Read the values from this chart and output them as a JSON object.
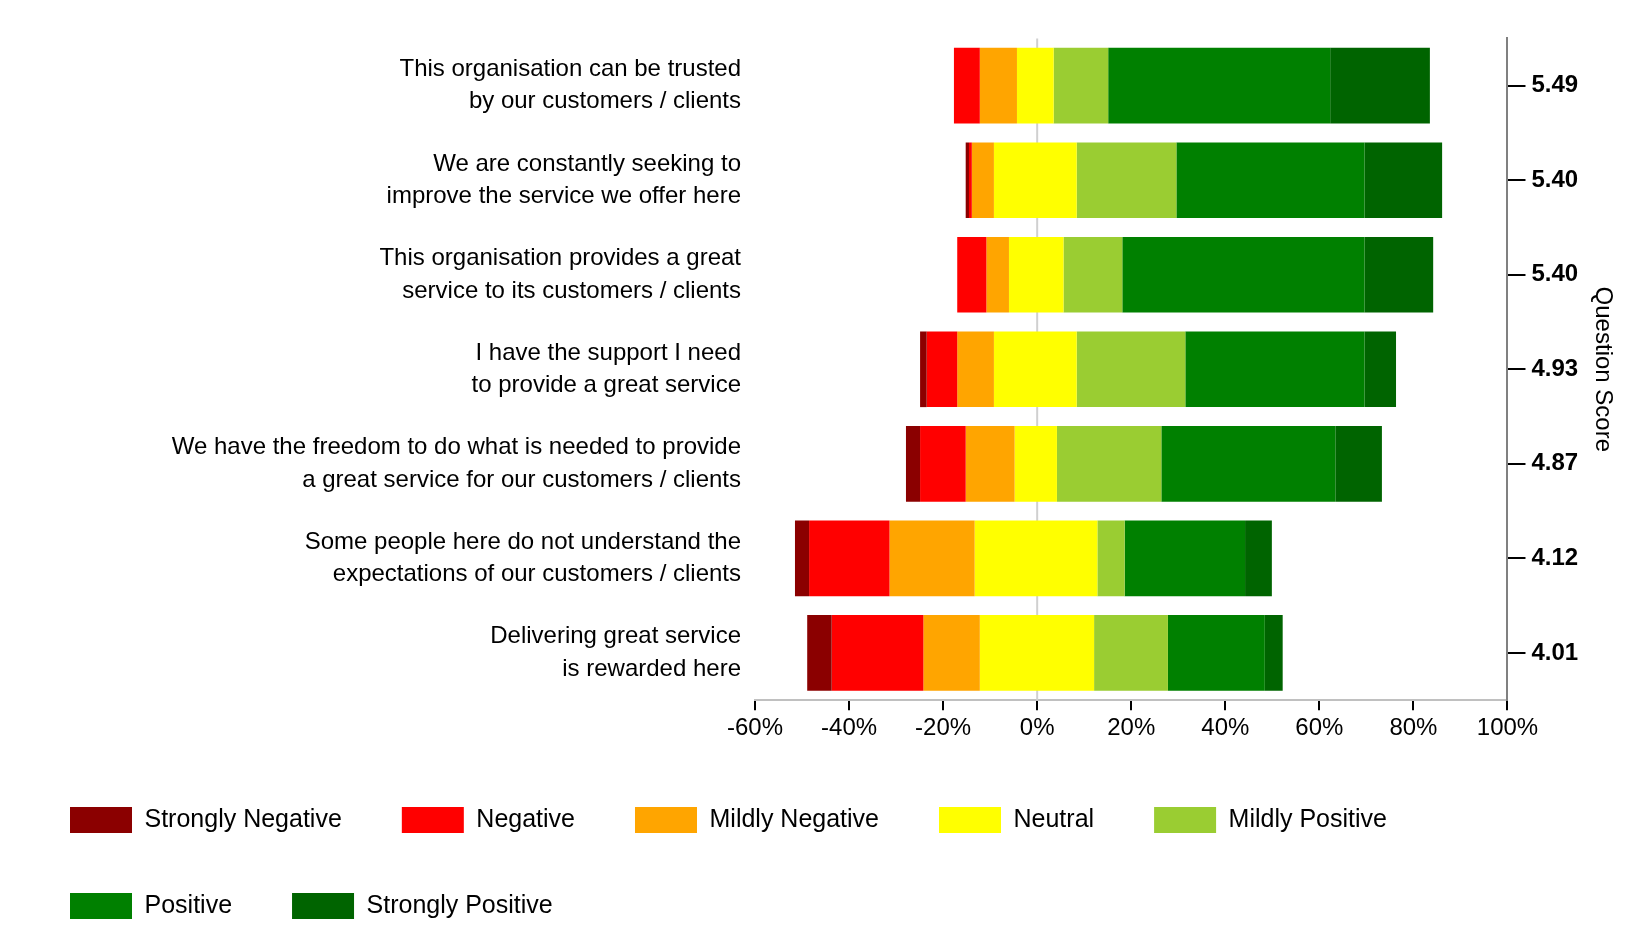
{
  "chart_data": {
    "type": "bar",
    "orientation": "horizontal",
    "categories": [
      "This organisation can be trusted\nby our customers / clients",
      "We are constantly seeking to\nimprove the service we offer here",
      "This organisation provides a great\nservice to its customers / clients",
      "I have the support I need\nto provide a great service",
      "We have the freedom to do what is needed to provide\na great service for our customers / clients",
      "Some people here do not understand the\nexpectations of our customers / clients",
      "Delivering great service\nis rewarded here"
    ],
    "y2_categories": [
      "5.49",
      "5.40",
      "5.40",
      "4.93",
      "4.87",
      "4.12",
      "4.01"
    ],
    "y2label": "Question Score",
    "series": [
      {
        "name": "Strongly Negative",
        "color": "#8b0000",
        "base": [
          null,
          -15.2,
          null,
          -24.9,
          -27.9,
          -51.5,
          -48.9
        ],
        "values": [
          null,
          0.7,
          null,
          1.4,
          3.0,
          3.0,
          5.2
        ]
      },
      {
        "name": "Negative",
        "color": "#ff0000",
        "base": [
          -17.7,
          -14.5,
          -17.0,
          -23.5,
          -24.9,
          -48.5,
          -43.7
        ],
        "values": [
          5.5,
          0.6,
          6.2,
          6.5,
          9.7,
          17.1,
          19.5
        ]
      },
      {
        "name": "Mildly Negative",
        "color": "#ffa500",
        "base": [
          -12.2,
          -13.9,
          -10.8,
          -17.0,
          -15.2,
          -31.4,
          -24.2
        ],
        "values": [
          7.9,
          4.7,
          4.8,
          7.8,
          10.4,
          18.1,
          12.0
        ]
      },
      {
        "name": "Neutral",
        "color": "#ffff00",
        "base": [
          -4.3,
          -9.2,
          -6.0,
          -9.2,
          -4.8,
          -13.3,
          -12.2
        ],
        "values": [
          7.8,
          17.6,
          11.6,
          17.6,
          9.0,
          26.1,
          24.3
        ]
      },
      {
        "name": "Mildly Positive",
        "color": "#9acd32",
        "base": [
          3.5,
          8.4,
          5.6,
          8.4,
          4.2,
          12.8,
          12.1
        ],
        "values": [
          11.6,
          21.2,
          12.5,
          23.1,
          22.2,
          5.8,
          15.7
        ]
      },
      {
        "name": "Positive",
        "color": "#008000",
        "base": [
          15.1,
          29.6,
          18.1,
          31.5,
          26.4,
          18.6,
          27.8
        ],
        "values": [
          47.2,
          40.0,
          51.5,
          38.1,
          37.0,
          25.6,
          20.6
        ]
      },
      {
        "name": "Strongly Positive",
        "color": "#006400",
        "base": [
          62.3,
          69.6,
          69.6,
          69.6,
          63.4,
          44.2,
          48.4
        ],
        "values": [
          21.2,
          16.5,
          14.6,
          6.7,
          9.9,
          5.7,
          3.8
        ]
      }
    ],
    "xlim": [
      -60,
      100
    ],
    "xticks": [
      {
        "value": -60,
        "label": "-60%"
      },
      {
        "value": -40,
        "label": "-40%"
      },
      {
        "value": -20,
        "label": "-20%"
      },
      {
        "value": 0,
        "label": "0%"
      },
      {
        "value": 20,
        "label": "20%"
      },
      {
        "value": 40,
        "label": "40%"
      },
      {
        "value": 60,
        "label": "60%"
      },
      {
        "value": 80,
        "label": "80%"
      },
      {
        "value": 100,
        "label": "100%"
      }
    ],
    "ref_lines": [
      {
        "axis": "x",
        "value": 0,
        "color": "#d0d0d0"
      }
    ],
    "legend": "bottom"
  }
}
